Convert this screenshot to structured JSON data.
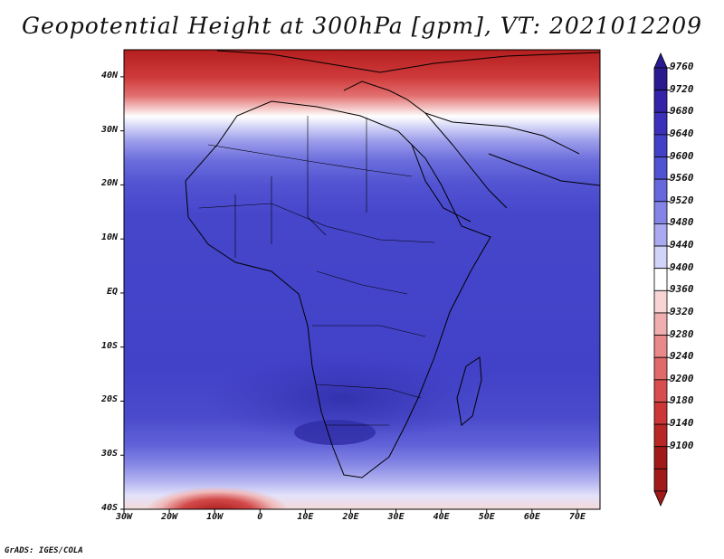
{
  "title": "Geopotential Height at 300hPa [gpm], VT: 2021012209",
  "credit": "GrADS: IGES/COLA",
  "map": {
    "lon_range": [
      -30,
      75
    ],
    "lat_range": [
      -40,
      45
    ],
    "lat_labels": [
      {
        "lat": 40,
        "text": "40N"
      },
      {
        "lat": 30,
        "text": "30N"
      },
      {
        "lat": 20,
        "text": "20N"
      },
      {
        "lat": 10,
        "text": "10N"
      },
      {
        "lat": 0,
        "text": "EQ"
      },
      {
        "lat": -10,
        "text": "10S"
      },
      {
        "lat": -20,
        "text": "20S"
      },
      {
        "lat": -30,
        "text": "30S"
      },
      {
        "lat": -40,
        "text": "40S"
      }
    ],
    "lon_labels": [
      {
        "lon": -30,
        "text": "30W"
      },
      {
        "lon": -20,
        "text": "20W"
      },
      {
        "lon": -10,
        "text": "10W"
      },
      {
        "lon": 0,
        "text": "0"
      },
      {
        "lon": 10,
        "text": "10E"
      },
      {
        "lon": 20,
        "text": "20E"
      },
      {
        "lon": 30,
        "text": "30E"
      },
      {
        "lon": 40,
        "text": "40E"
      },
      {
        "lon": 50,
        "text": "50E"
      },
      {
        "lon": 60,
        "text": "60E"
      },
      {
        "lon": 70,
        "text": "70E"
      }
    ]
  },
  "colorbar": {
    "levels": [
      {
        "value": "9760",
        "color": "#2a1a90"
      },
      {
        "value": "9720",
        "color": "#3223a8"
      },
      {
        "value": "9680",
        "color": "#3a30ba"
      },
      {
        "value": "9640",
        "color": "#4340c8"
      },
      {
        "value": "9600",
        "color": "#4f52d2"
      },
      {
        "value": "9560",
        "color": "#6668dc"
      },
      {
        "value": "9520",
        "color": "#8384e6"
      },
      {
        "value": "9480",
        "color": "#a9aaef"
      },
      {
        "value": "9440",
        "color": "#d2d3f8"
      },
      {
        "value": "9400",
        "color": "#ffffff"
      },
      {
        "value": "9360",
        "color": "#f8d4d4"
      },
      {
        "value": "9320",
        "color": "#f0aeae"
      },
      {
        "value": "9280",
        "color": "#e88a8a"
      },
      {
        "value": "9240",
        "color": "#e06a6a"
      },
      {
        "value": "9200",
        "color": "#d84e4e"
      },
      {
        "value": "9180",
        "color": "#cc3636"
      },
      {
        "value": "9140",
        "color": "#b82626"
      },
      {
        "value": "9100",
        "color": "#a01a1a"
      }
    ]
  }
}
